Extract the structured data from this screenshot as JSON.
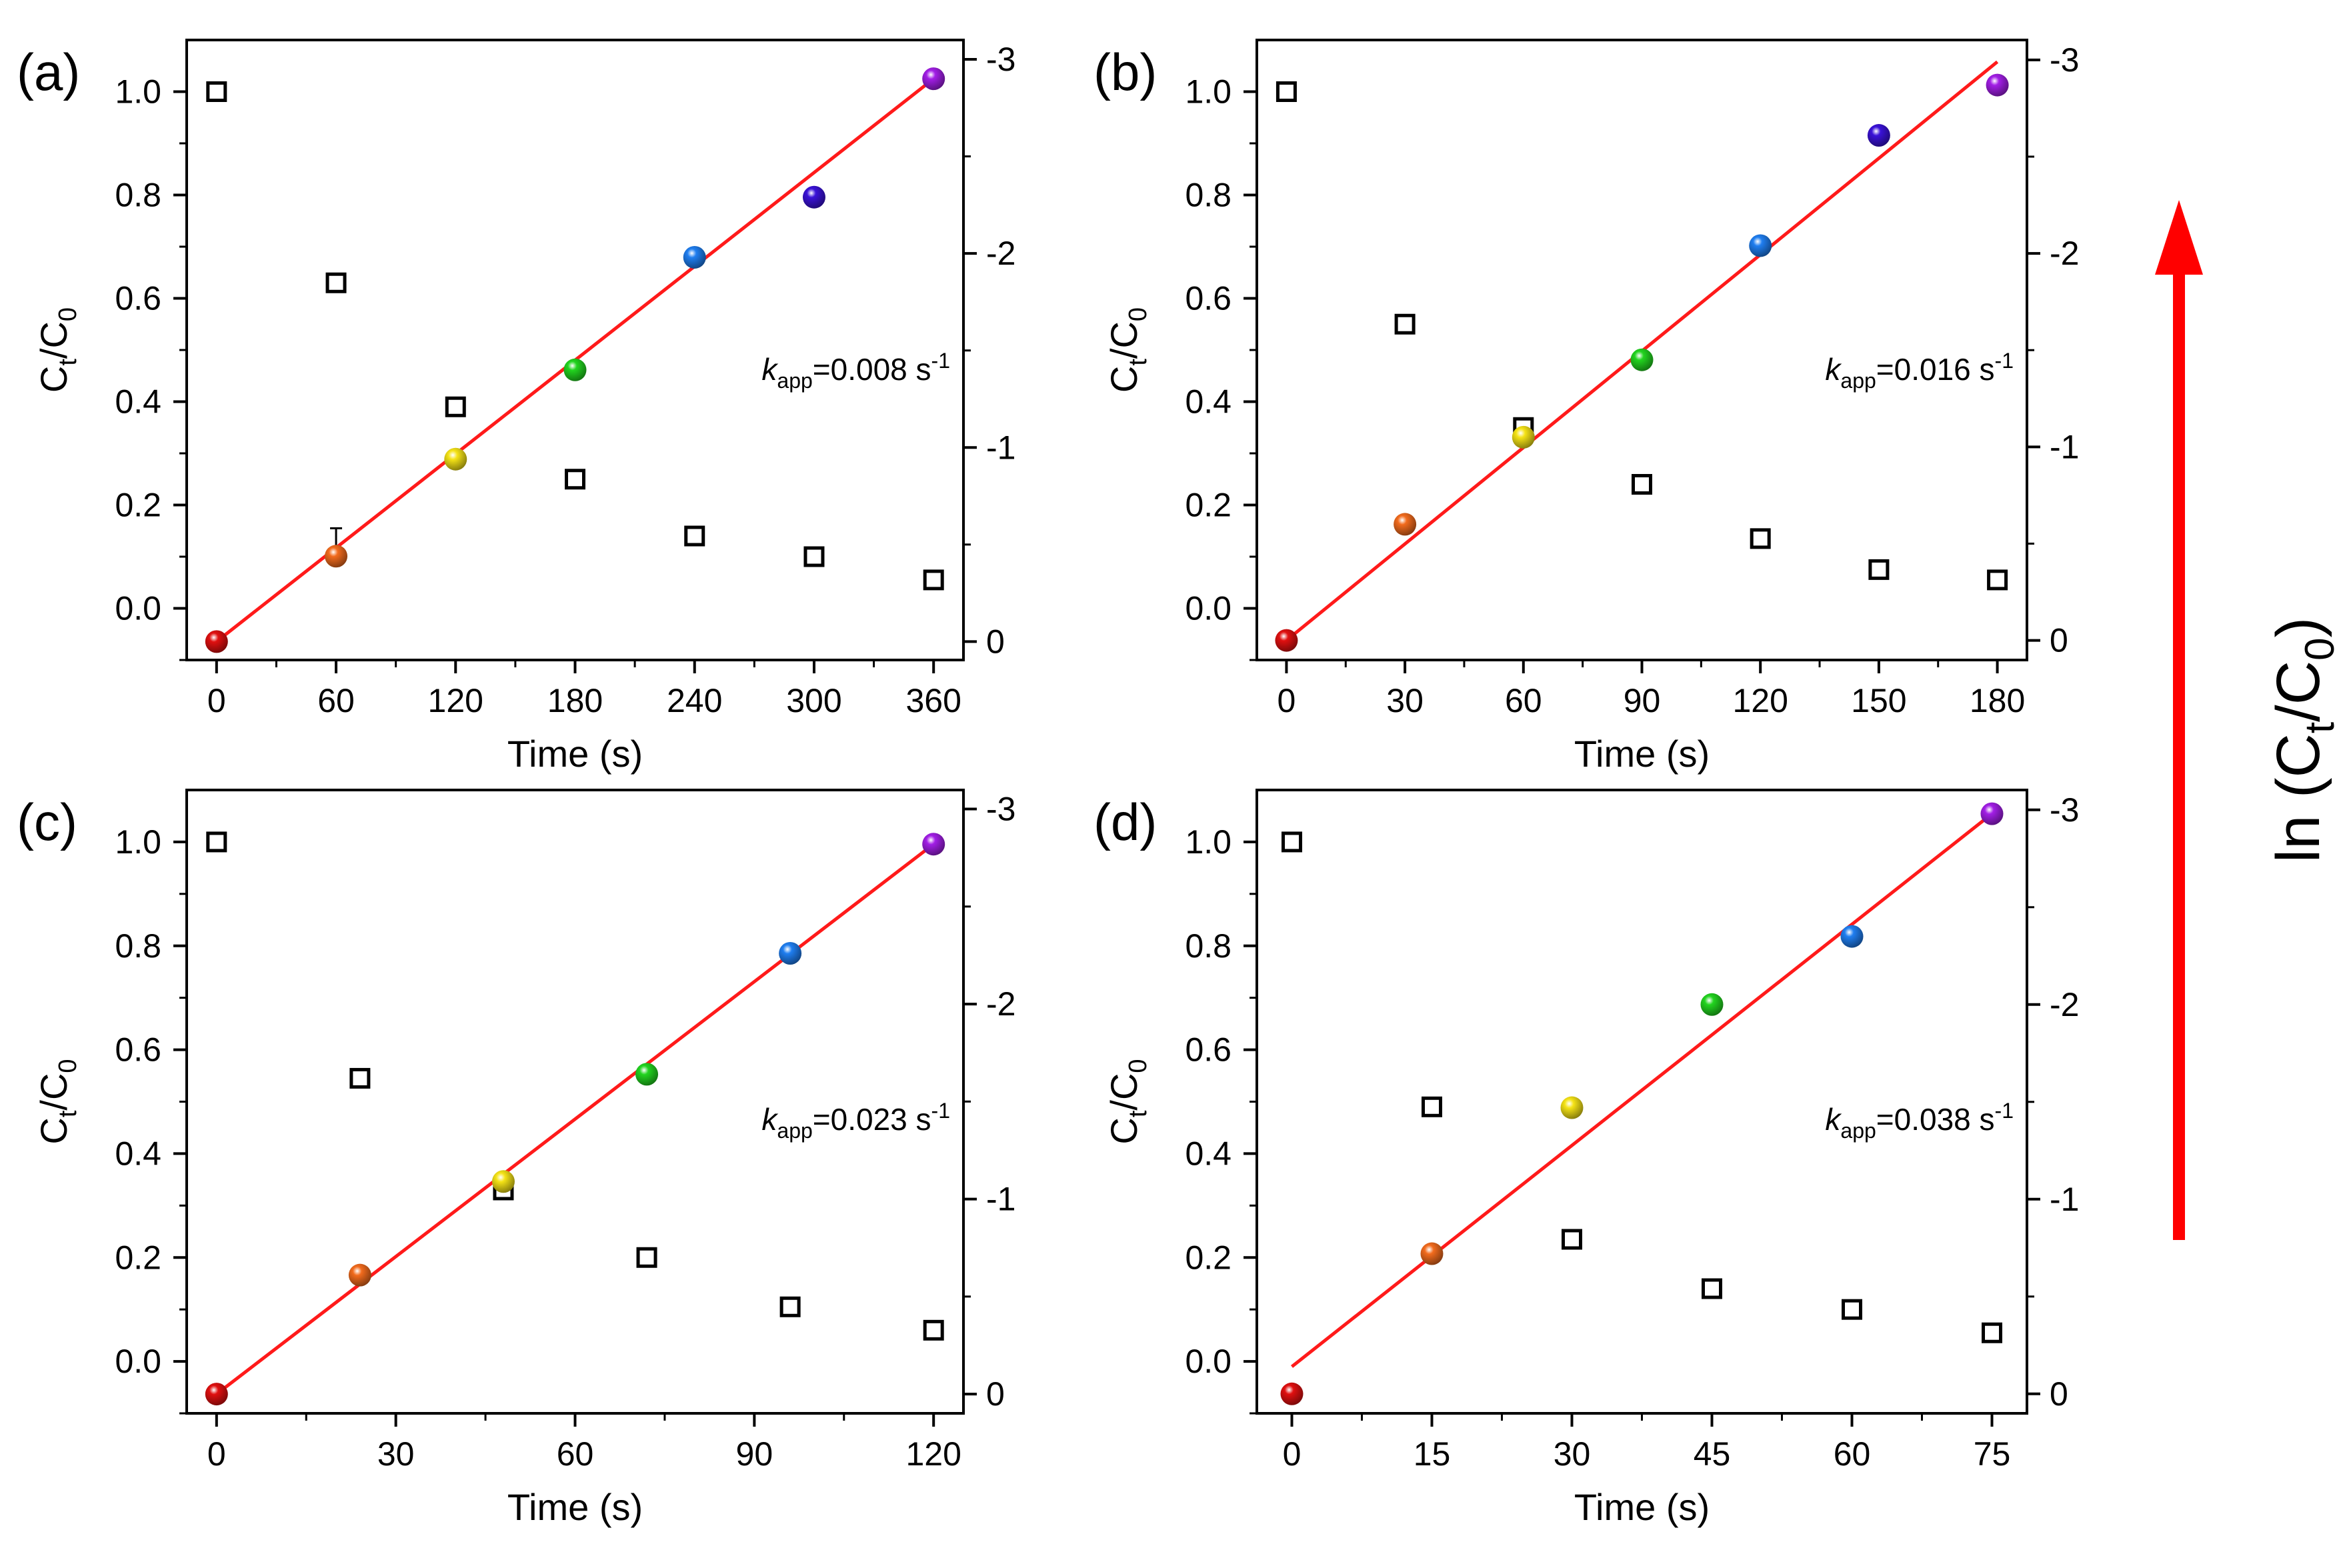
{
  "figure": {
    "side_label_prefix": "ln (C",
    "side_label_sub1": "t",
    "side_label_mid": "/C",
    "side_label_sub2": "0",
    "side_label_suffix": ")",
    "arrow_color": "#ff0000"
  },
  "chart_data": [
    {
      "id": "a",
      "type": "scatter",
      "panel_label": "(a)",
      "xlabel": "Time (s)",
      "ylabel_main": "C",
      "ylabel_sub1": "t",
      "ylabel_mid": "/C",
      "ylabel_sub2": "0",
      "xlim": [
        -15,
        375
      ],
      "ylim": [
        -0.1,
        1.1
      ],
      "y2lim": [
        0.0949,
        -3.0997
      ],
      "xticks": [
        0,
        60,
        120,
        180,
        240,
        300,
        360
      ],
      "yticks": [
        0.0,
        0.2,
        0.4,
        0.6,
        0.8,
        1.0
      ],
      "ytick_labels": [
        "0.0",
        "0.2",
        "0.4",
        "0.6",
        "0.8",
        "1.0"
      ],
      "y2ticks": [
        0,
        -1,
        -2,
        -3
      ],
      "y2tick_labels": [
        "0",
        "-1",
        "-2",
        "-3"
      ],
      "kapp_k": "k",
      "kapp_sub": "app",
      "kapp_value": "=0.008 s",
      "kapp_exp": "-1",
      "ct_c0": {
        "x": [
          0,
          60,
          120,
          180,
          240,
          300,
          360
        ],
        "y": [
          1.0,
          0.63,
          0.39,
          0.25,
          0.14,
          0.1,
          0.055
        ]
      },
      "ln_points": {
        "x": [
          0,
          60,
          120,
          180,
          240,
          300,
          360
        ],
        "y": [
          0.0,
          -0.44,
          -0.94,
          -1.4,
          -1.98,
          -2.29,
          -2.9
        ]
      },
      "fit_line": {
        "x": [
          0,
          360
        ],
        "y": [
          0.0,
          -2.9
        ]
      },
      "error_bar": {
        "x": 60,
        "y": 0.135,
        "err": 0.02
      }
    },
    {
      "id": "b",
      "type": "scatter",
      "panel_label": "(b)",
      "xlabel": "Time (s)",
      "ylabel_main": "C",
      "ylabel_sub1": "t",
      "ylabel_mid": "/C",
      "ylabel_sub2": "0",
      "xlim": [
        -7.5,
        187.5
      ],
      "ylim": [
        -0.1,
        1.1
      ],
      "y2lim": [
        0.1014,
        -3.1028
      ],
      "xticks": [
        0,
        30,
        60,
        90,
        120,
        150,
        180
      ],
      "yticks": [
        0.0,
        0.2,
        0.4,
        0.6,
        0.8,
        1.0
      ],
      "ytick_labels": [
        "0.0",
        "0.2",
        "0.4",
        "0.6",
        "0.8",
        "1.0"
      ],
      "y2ticks": [
        0,
        -1,
        -2,
        -3
      ],
      "y2tick_labels": [
        "0",
        "-1",
        "-2",
        "-3"
      ],
      "kapp_k": "k",
      "kapp_sub": "app",
      "kapp_value": "=0.016 s",
      "kapp_exp": "-1",
      "ct_c0": {
        "x": [
          0,
          30,
          60,
          90,
          120,
          150,
          180
        ],
        "y": [
          1.0,
          0.55,
          0.35,
          0.24,
          0.135,
          0.075,
          0.055
        ]
      },
      "ln_points": {
        "x": [
          0,
          30,
          60,
          90,
          120,
          150,
          180
        ],
        "y": [
          0.0,
          -0.6,
          -1.05,
          -1.45,
          -2.04,
          -2.61,
          -2.87
        ]
      },
      "fit_line": {
        "x": [
          0,
          180
        ],
        "y": [
          0.0,
          -2.99
        ]
      }
    },
    {
      "id": "c",
      "type": "scatter",
      "panel_label": "(c)",
      "xlabel": "Time (s)",
      "ylabel_main": "C",
      "ylabel_sub1": "t",
      "ylabel_mid": "/C",
      "ylabel_sub2": "0",
      "xlim": [
        -5,
        125
      ],
      "ylim": [
        -0.1,
        1.1
      ],
      "y2lim": [
        0.0988,
        -3.0976
      ],
      "xticks": [
        0,
        30,
        60,
        90,
        120
      ],
      "yticks": [
        0.0,
        0.2,
        0.4,
        0.6,
        0.8,
        1.0
      ],
      "ytick_labels": [
        "0.0",
        "0.2",
        "0.4",
        "0.6",
        "0.8",
        "1.0"
      ],
      "y2ticks": [
        0,
        -1,
        -2,
        -3
      ],
      "y2tick_labels": [
        "0",
        "-1",
        "-2",
        "-3"
      ],
      "kapp_k": "k",
      "kapp_sub": "app",
      "kapp_value": "=0.023 s",
      "kapp_exp": "-1",
      "ct_c0": {
        "x": [
          0,
          24,
          48,
          72,
          96,
          120
        ],
        "y": [
          1.0,
          0.545,
          0.33,
          0.2,
          0.105,
          0.06
        ]
      },
      "ln_points": {
        "x": [
          0,
          24,
          48,
          72,
          96,
          120
        ],
        "y": [
          0.0,
          -0.61,
          -1.09,
          -1.64,
          -2.26,
          -2.82
        ]
      },
      "fit_line": {
        "x": [
          0,
          120
        ],
        "y": [
          0.0,
          -2.82
        ]
      }
    },
    {
      "id": "d",
      "type": "scatter",
      "panel_label": "(d)",
      "xlabel": "Time (s)",
      "ylabel_main": "C",
      "ylabel_sub1": "t",
      "ylabel_mid": "/C",
      "ylabel_sub2": "0",
      "xlim": [
        -3.75,
        78.75
      ],
      "ylim": [
        -0.1,
        1.1
      ],
      "y2lim": [
        0.1,
        -3.102
      ],
      "xticks": [
        0,
        15,
        30,
        45,
        60,
        75
      ],
      "yticks": [
        0.0,
        0.2,
        0.4,
        0.6,
        0.8,
        1.0
      ],
      "ytick_labels": [
        "0.0",
        "0.2",
        "0.4",
        "0.6",
        "0.8",
        "1.0"
      ],
      "y2ticks": [
        0,
        -1,
        -2,
        -3
      ],
      "y2tick_labels": [
        "0",
        "-1",
        "-2",
        "-3"
      ],
      "kapp_k": "k",
      "kapp_sub": "app",
      "kapp_value": "=0.038 s",
      "kapp_exp": "-1",
      "ct_c0": {
        "x": [
          0,
          15,
          30,
          45,
          60,
          75
        ],
        "y": [
          1.0,
          0.49,
          0.235,
          0.14,
          0.1,
          0.055
        ]
      },
      "ln_points": {
        "x": [
          0,
          15,
          30,
          45,
          60,
          75
        ],
        "y": [
          0.0,
          -0.72,
          -1.47,
          -2.0,
          -2.35,
          -2.98
        ]
      },
      "fit_line": {
        "x": [
          0,
          75
        ],
        "y": [
          -0.14,
          -2.98
        ]
      }
    }
  ],
  "styles": {
    "fit_color": "#ff1a1a",
    "sphere_colors": [
      "#e01010",
      "#f26b1d",
      "#f5e316",
      "#22d41f",
      "#1f7ef0",
      "#3a12d8",
      "#a21ee6"
    ],
    "sphere_colors_6": [
      "#e01010",
      "#f26b1d",
      "#f5e316",
      "#22d41f",
      "#1f7ef0",
      "#a21ee6"
    ]
  }
}
